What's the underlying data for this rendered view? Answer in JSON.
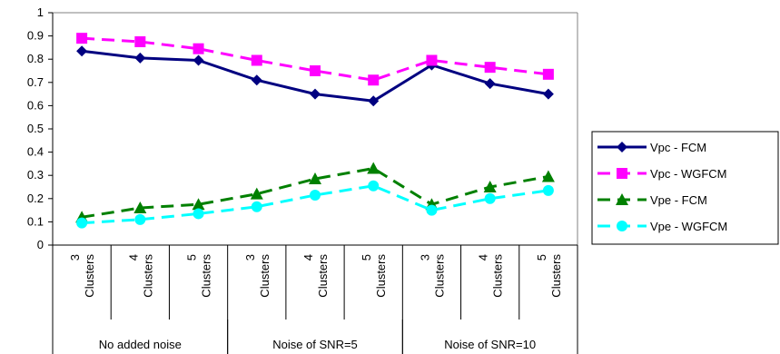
{
  "chart_data": {
    "type": "line",
    "categories": [
      "3 Clusters",
      "4 Clusters",
      "5 Clusters",
      "3 Clusters",
      "4 Clusters",
      "5 Clusters",
      "3 Clusters",
      "4 Clusters",
      "5 Clusters"
    ],
    "category_lines": [
      [
        "3",
        "Clusters"
      ],
      [
        "4",
        "Clusters"
      ],
      [
        "5",
        "Clusters"
      ],
      [
        "3",
        "Clusters"
      ],
      [
        "4",
        "Clusters"
      ],
      [
        "5",
        "Clusters"
      ],
      [
        "3",
        "Clusters"
      ],
      [
        "4",
        "Clusters"
      ],
      [
        "5",
        "Clusters"
      ]
    ],
    "groups": [
      {
        "label": "No added noise",
        "span": [
          0,
          2
        ]
      },
      {
        "label": "Noise of SNR=5",
        "span": [
          3,
          5
        ]
      },
      {
        "label": "Noise of SNR=10",
        "span": [
          6,
          8
        ]
      }
    ],
    "ylim": [
      0,
      1
    ],
    "yticks": [
      0,
      0.1,
      0.2,
      0.3,
      0.4,
      0.5,
      0.6,
      0.7,
      0.8,
      0.9,
      1
    ],
    "ytick_labels": [
      "0",
      "0.1",
      "0.2",
      "0.3",
      "0.4",
      "0.5",
      "0.6",
      "0.7",
      "0.8",
      "0.9",
      "1"
    ],
    "grid": false,
    "legend_position": "right",
    "series": [
      {
        "name": "Vpc - FCM",
        "values": [
          0.835,
          0.805,
          0.795,
          0.71,
          0.65,
          0.62,
          0.775,
          0.695,
          0.65
        ],
        "color": "#000080",
        "dash": "solid",
        "marker": "diamond"
      },
      {
        "name": "Vpc - WGFCM",
        "values": [
          0.89,
          0.875,
          0.845,
          0.795,
          0.75,
          0.71,
          0.795,
          0.765,
          0.735
        ],
        "color": "#FF00FF",
        "dash": "dashed",
        "marker": "square"
      },
      {
        "name": "Vpe - FCM",
        "values": [
          0.12,
          0.16,
          0.175,
          0.22,
          0.285,
          0.33,
          0.175,
          0.25,
          0.295
        ],
        "color": "#008000",
        "dash": "dashed",
        "marker": "triangle"
      },
      {
        "name": "Vpe - WGFCM",
        "values": [
          0.095,
          0.11,
          0.135,
          0.165,
          0.215,
          0.255,
          0.15,
          0.2,
          0.235
        ],
        "color": "#00FFFF",
        "dash": "dashed",
        "marker": "circle"
      }
    ]
  }
}
